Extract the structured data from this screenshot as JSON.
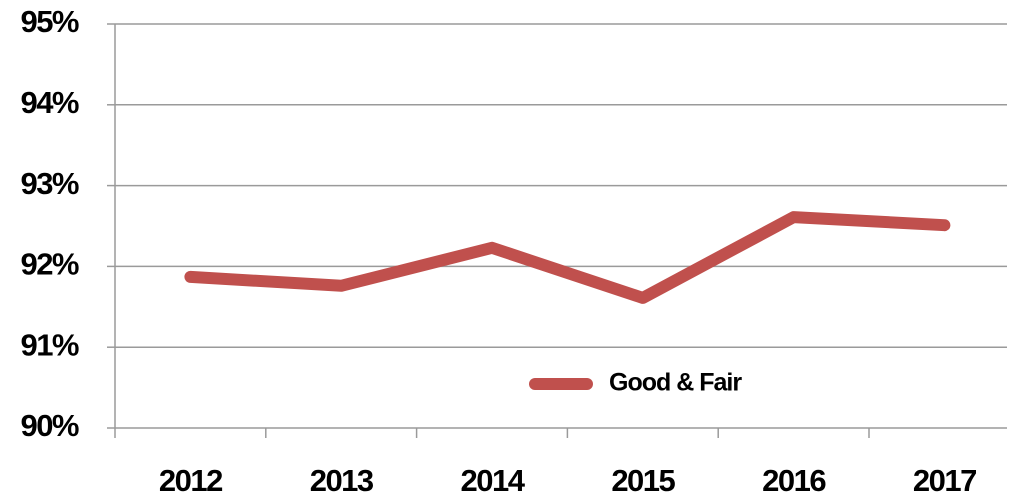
{
  "chart_data": {
    "type": "line",
    "categories": [
      "2012",
      "2013",
      "2014",
      "2015",
      "2016",
      "2017"
    ],
    "series": [
      {
        "name": "Good & Fair",
        "color": "#c0504d",
        "values": [
          91.87,
          91.76,
          92.23,
          91.61,
          92.61,
          92.51
        ]
      }
    ],
    "ylim": [
      90,
      95
    ],
    "yticks": [
      {
        "value": 90,
        "label": "90%"
      },
      {
        "value": 91,
        "label": "91%"
      },
      {
        "value": 92,
        "label": "92%"
      },
      {
        "value": 93,
        "label": "93%"
      },
      {
        "value": 94,
        "label": "94%"
      },
      {
        "value": 95,
        "label": "95%"
      }
    ],
    "grid": true,
    "legend": "lower center"
  }
}
